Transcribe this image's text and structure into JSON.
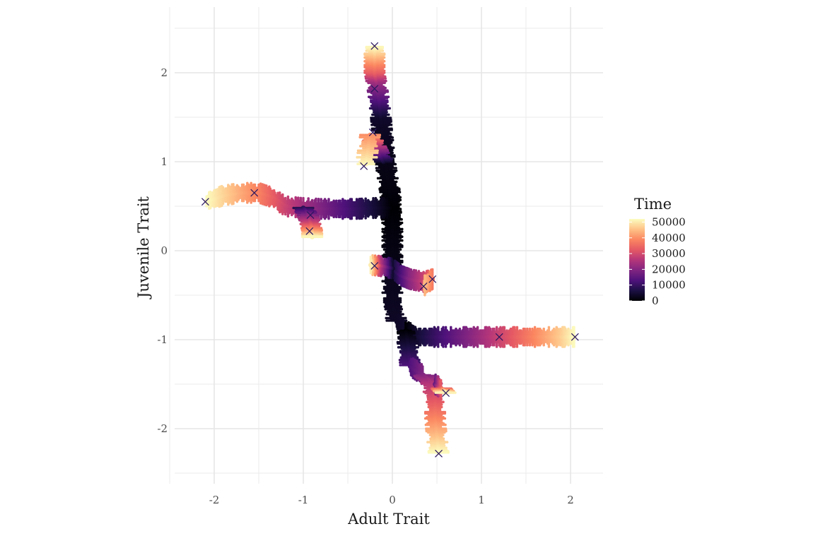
{
  "chart_data": {
    "type": "scatter",
    "title": "",
    "xlabel": "Adult Trait",
    "ylabel": "Juvenile Trait",
    "xlim": [
      -2.4,
      2.4
    ],
    "ylim": [
      -2.6,
      2.5
    ],
    "x_ticks": [
      -2,
      -1,
      0,
      1,
      2
    ],
    "y_ticks": [
      -2,
      -1,
      0,
      1,
      2
    ],
    "x_tick_labels": [
      "-2",
      "-1",
      "0",
      "1",
      "2"
    ],
    "y_tick_labels": [
      "-2",
      "-1",
      "0",
      "1",
      "2"
    ],
    "grid": true,
    "color_scale": {
      "title": "Time",
      "min": 0,
      "max": 52000,
      "breaks": [
        0,
        10000,
        20000,
        30000,
        40000,
        50000
      ],
      "break_labels": [
        "0",
        "10000",
        "20000",
        "30000",
        "40000",
        "50000"
      ],
      "palette": "magma",
      "colors": [
        "#000004",
        "#1c1044",
        "#4f127b",
        "#812581",
        "#b5367a",
        "#e55964",
        "#fb8761",
        "#fec287",
        "#fcfdbf"
      ]
    },
    "legend_position": "right",
    "branches": [
      {
        "name": "trunk-upper",
        "points": [
          [
            -0.02,
            0.48
          ],
          [
            -0.02,
            0.62
          ],
          [
            -0.05,
            0.8
          ],
          [
            -0.08,
            1.0
          ],
          [
            -0.1,
            1.2
          ],
          [
            -0.12,
            1.4
          ],
          [
            -0.13,
            1.5
          ]
        ]
      },
      {
        "name": "trunk-lower",
        "points": [
          [
            -0.02,
            0.48
          ],
          [
            0.0,
            0.3
          ],
          [
            0.0,
            0.1
          ],
          [
            0.0,
            -0.1
          ],
          [
            0.0,
            -0.3
          ],
          [
            0.0,
            -0.6
          ],
          [
            0.05,
            -0.8
          ],
          [
            0.15,
            -0.9
          ]
        ]
      },
      {
        "name": "branch-up",
        "points": [
          [
            -0.13,
            1.5
          ],
          [
            -0.15,
            1.7
          ],
          [
            -0.18,
            1.9
          ],
          [
            -0.2,
            2.0
          ],
          [
            -0.2,
            2.15
          ],
          [
            -0.2,
            2.3
          ]
        ]
      },
      {
        "name": "branch-upper-mid",
        "points": [
          [
            -0.1,
            1.0
          ],
          [
            -0.15,
            1.1
          ],
          [
            -0.2,
            1.2
          ],
          [
            -0.25,
            1.3
          ],
          [
            -0.3,
            0.95
          ]
        ]
      },
      {
        "name": "branch-left",
        "points": [
          [
            -0.02,
            0.48
          ],
          [
            -0.2,
            0.48
          ],
          [
            -0.4,
            0.47
          ],
          [
            -0.6,
            0.47
          ],
          [
            -0.8,
            0.47
          ],
          [
            -1.0,
            0.48
          ],
          [
            -1.2,
            0.5
          ],
          [
            -1.35,
            0.6
          ],
          [
            -1.5,
            0.65
          ],
          [
            -1.7,
            0.65
          ],
          [
            -1.9,
            0.62
          ],
          [
            -2.1,
            0.55
          ]
        ]
      },
      {
        "name": "branch-left-down",
        "points": [
          [
            -1.0,
            0.48
          ],
          [
            -0.95,
            0.4
          ],
          [
            -0.92,
            0.3
          ],
          [
            -0.9,
            0.22
          ],
          [
            -0.9,
            0.15
          ]
        ]
      },
      {
        "name": "branch-center-right",
        "points": [
          [
            0.0,
            -0.2
          ],
          [
            0.1,
            -0.28
          ],
          [
            0.2,
            -0.32
          ],
          [
            0.35,
            -0.35
          ],
          [
            0.45,
            -0.32
          ],
          [
            0.35,
            -0.4
          ]
        ]
      },
      {
        "name": "branch-center-left",
        "points": [
          [
            0.0,
            -0.2
          ],
          [
            -0.15,
            -0.17
          ],
          [
            -0.25,
            -0.16
          ]
        ]
      },
      {
        "name": "branch-right",
        "points": [
          [
            0.15,
            -0.9
          ],
          [
            0.3,
            -0.97
          ],
          [
            0.5,
            -0.97
          ],
          [
            0.7,
            -0.97
          ],
          [
            0.9,
            -0.97
          ],
          [
            1.1,
            -0.97
          ],
          [
            1.3,
            -0.97
          ],
          [
            1.5,
            -0.97
          ],
          [
            1.7,
            -0.97
          ],
          [
            1.9,
            -0.97
          ],
          [
            2.05,
            -0.97
          ]
        ]
      },
      {
        "name": "branch-down",
        "points": [
          [
            0.15,
            -0.9
          ],
          [
            0.18,
            -1.1
          ],
          [
            0.2,
            -1.3
          ],
          [
            0.35,
            -1.4
          ],
          [
            0.45,
            -1.5
          ],
          [
            0.48,
            -1.7
          ],
          [
            0.48,
            -1.9
          ],
          [
            0.5,
            -2.1
          ],
          [
            0.52,
            -2.28
          ]
        ]
      },
      {
        "name": "branch-down-right",
        "points": [
          [
            0.48,
            -1.5
          ],
          [
            0.55,
            -1.55
          ],
          [
            0.6,
            -1.6
          ]
        ]
      }
    ],
    "endpoints": [
      [
        -0.2,
        2.3
      ],
      [
        -0.2,
        1.82
      ],
      [
        -0.22,
        1.33
      ],
      [
        -0.32,
        0.95
      ],
      [
        -2.1,
        0.55
      ],
      [
        -1.55,
        0.65
      ],
      [
        -0.92,
        0.4
      ],
      [
        -0.93,
        0.22
      ],
      [
        -0.2,
        -0.17
      ],
      [
        0.35,
        -0.4
      ],
      [
        0.45,
        -0.32
      ],
      [
        2.05,
        -0.97
      ],
      [
        1.2,
        -0.97
      ],
      [
        0.6,
        -1.6
      ],
      [
        0.52,
        -2.28
      ]
    ]
  }
}
